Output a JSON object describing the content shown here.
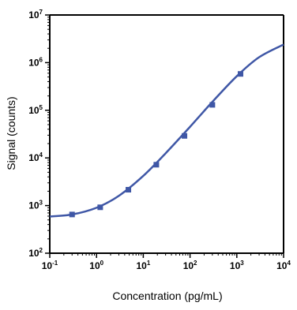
{
  "chart_data": {
    "type": "line",
    "title": "",
    "xlabel": "Concentration (pg/mL)",
    "ylabel": "Signal (counts)",
    "x_scale": "log",
    "y_scale": "log",
    "xlim": [
      0.1,
      10000
    ],
    "ylim": [
      100,
      10000000
    ],
    "grid": false,
    "x_ticks": [
      {
        "base": "10",
        "exp": "-1",
        "value": 0.1
      },
      {
        "base": "10",
        "exp": "0",
        "value": 1
      },
      {
        "base": "10",
        "exp": "1",
        "value": 10
      },
      {
        "base": "10",
        "exp": "2",
        "value": 100
      },
      {
        "base": "10",
        "exp": "3",
        "value": 1000
      },
      {
        "base": "10",
        "exp": "4",
        "value": 10000
      }
    ],
    "y_ticks": [
      {
        "base": "10",
        "exp": "2",
        "value": 100
      },
      {
        "base": "10",
        "exp": "3",
        "value": 1000
      },
      {
        "base": "10",
        "exp": "4",
        "value": 10000
      },
      {
        "base": "10",
        "exp": "5",
        "value": 100000
      },
      {
        "base": "10",
        "exp": "6",
        "value": 1000000
      },
      {
        "base": "10",
        "exp": "7",
        "value": 10000000
      }
    ],
    "series": [
      {
        "style": "markers",
        "color": "#3f57a6",
        "x": [
          0.3,
          1.2,
          4.8,
          19,
          76,
          300,
          1200
        ],
        "y": [
          650,
          920,
          2150,
          7200,
          29000,
          130000,
          580000
        ]
      },
      {
        "style": "fitted-curve",
        "color": "#3f57a6",
        "x": [
          0.1,
          0.3,
          1,
          3,
          10,
          30,
          100,
          300,
          1000,
          3000,
          10000
        ],
        "y": [
          590,
          650,
          900,
          1600,
          4200,
          12500,
          45000,
          150000,
          520000,
          1300000,
          2400000
        ]
      }
    ]
  }
}
